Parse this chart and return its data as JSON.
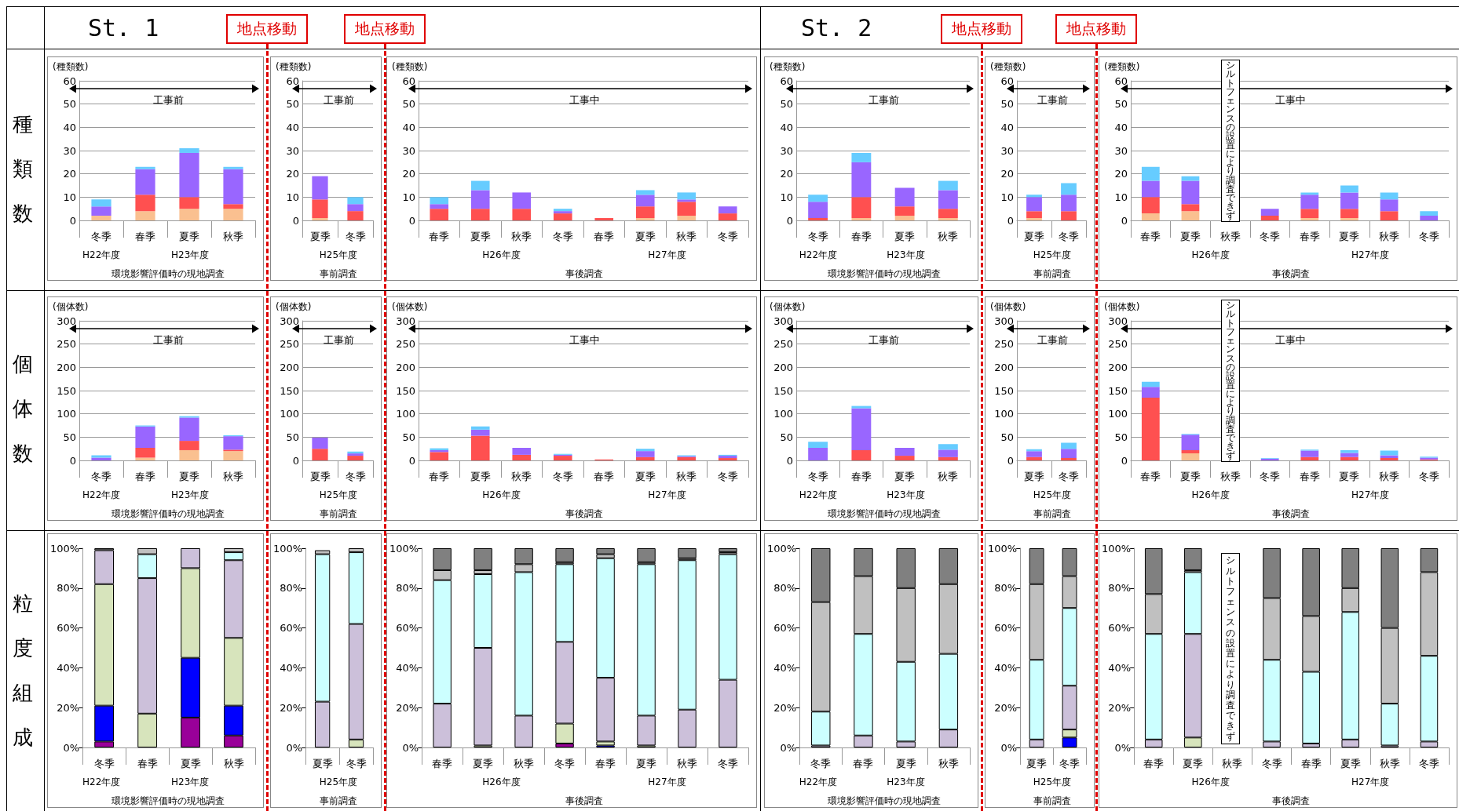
{
  "chart_data": [
    {
      "type": "bar",
      "stacked": true,
      "ylabel": "(種類数)",
      "subtitle": "工事前",
      "xlabel": "環境影響評価時の現地調査",
      "categories": [
        "冬季",
        "春季",
        "夏季",
        "秋季"
      ],
      "ylim": [
        0,
        60
      ],
      "yticks": [
        0,
        10,
        20,
        30,
        40,
        50,
        60
      ],
      "grid": "y",
      "annotations": [
        "H22年度",
        "H23年度"
      ],
      "series": [
        {
          "color": "#fac090",
          "values": [
            2,
            4,
            5,
            5
          ]
        },
        {
          "color": "#ff5050",
          "values": [
            0,
            7,
            5,
            2
          ]
        },
        {
          "color": "#9966ff",
          "values": [
            4,
            11,
            19,
            15
          ]
        },
        {
          "color": "#66ccff",
          "values": [
            3,
            1,
            2,
            1
          ]
        }
      ]
    },
    {
      "type": "bar",
      "stacked": true,
      "ylabel": "(種類数)",
      "subtitle": "工事前",
      "xlabel": "事前調査",
      "categories": [
        "夏季",
        "冬季"
      ],
      "ylim": [
        0,
        60
      ],
      "yticks": [
        0,
        10,
        20,
        30,
        40,
        50,
        60
      ],
      "grid": "y",
      "annotations": [
        "H25年度"
      ],
      "series": [
        {
          "color": "#fac090",
          "values": [
            1,
            0
          ]
        },
        {
          "color": "#ff5050",
          "values": [
            8,
            4
          ]
        },
        {
          "color": "#9966ff",
          "values": [
            10,
            3
          ]
        },
        {
          "color": "#66ccff",
          "values": [
            0,
            3
          ]
        }
      ]
    },
    {
      "type": "bar",
      "stacked": true,
      "ylabel": "(種類数)",
      "subtitle": "工事中",
      "xlabel": "事後調査",
      "categories": [
        "春季",
        "夏季",
        "秋季",
        "冬季",
        "春季",
        "夏季",
        "秋季",
        "冬季"
      ],
      "ylim": [
        0,
        60
      ],
      "yticks": [
        0,
        10,
        20,
        30,
        40,
        50,
        60
      ],
      "grid": "y",
      "annotations": [
        "H26年度",
        "H27年度"
      ],
      "series": [
        {
          "color": "#fac090",
          "values": [
            0,
            0,
            0,
            0,
            0,
            1,
            2,
            0
          ]
        },
        {
          "color": "#ff5050",
          "values": [
            5,
            5,
            5,
            3,
            1,
            5,
            6,
            3
          ]
        },
        {
          "color": "#9966ff",
          "values": [
            2,
            8,
            7,
            1,
            0,
            5,
            1,
            3
          ]
        },
        {
          "color": "#66ccff",
          "values": [
            3,
            4,
            0,
            1,
            0,
            2,
            3,
            0
          ]
        }
      ]
    },
    {
      "type": "bar",
      "stacked": true,
      "ylabel": "(種類数)",
      "subtitle": "工事前",
      "xlabel": "環境影響評価時の現地調査",
      "categories": [
        "冬季",
        "春季",
        "夏季",
        "秋季"
      ],
      "ylim": [
        0,
        60
      ],
      "yticks": [
        0,
        10,
        20,
        30,
        40,
        50,
        60
      ],
      "grid": "y",
      "annotations": [
        "H22年度",
        "H23年度"
      ],
      "series": [
        {
          "color": "#fac090",
          "values": [
            0,
            1,
            2,
            1
          ]
        },
        {
          "color": "#ff5050",
          "values": [
            1,
            9,
            4,
            4
          ]
        },
        {
          "color": "#9966ff",
          "values": [
            7,
            15,
            8,
            8
          ]
        },
        {
          "color": "#66ccff",
          "values": [
            3,
            4,
            0,
            4
          ]
        }
      ]
    },
    {
      "type": "bar",
      "stacked": true,
      "ylabel": "(種類数)",
      "subtitle": "工事前",
      "xlabel": "事前調査",
      "categories": [
        "夏季",
        "冬季"
      ],
      "ylim": [
        0,
        60
      ],
      "yticks": [
        0,
        10,
        20,
        30,
        40,
        50,
        60
      ],
      "grid": "y",
      "annotations": [
        "H25年度"
      ],
      "series": [
        {
          "color": "#fac090",
          "values": [
            1,
            0
          ]
        },
        {
          "color": "#ff5050",
          "values": [
            3,
            4
          ]
        },
        {
          "color": "#9966ff",
          "values": [
            6,
            7
          ]
        },
        {
          "color": "#66ccff",
          "values": [
            1,
            5
          ]
        }
      ]
    },
    {
      "type": "bar",
      "stacked": true,
      "ylabel": "(種類数)",
      "subtitle": "工事中",
      "xlabel": "事後調査",
      "categories": [
        "春季",
        "夏季",
        "秋季",
        "冬季",
        "春季",
        "夏季",
        "秋季",
        "冬季"
      ],
      "ylim": [
        0,
        60
      ],
      "yticks": [
        0,
        10,
        20,
        30,
        40,
        50,
        60
      ],
      "grid": "y",
      "annotations": [
        "H26年度",
        "H27年度",
        "シルトフェンスの設置により調査できず"
      ],
      "series": [
        {
          "color": "#fac090",
          "values": [
            3,
            4,
            null,
            0,
            1,
            1,
            0,
            0
          ]
        },
        {
          "color": "#ff5050",
          "values": [
            7,
            3,
            null,
            2,
            4,
            4,
            4,
            0
          ]
        },
        {
          "color": "#9966ff",
          "values": [
            7,
            10,
            null,
            3,
            6,
            7,
            5,
            2
          ]
        },
        {
          "color": "#66ccff",
          "values": [
            6,
            2,
            null,
            0,
            1,
            3,
            3,
            2
          ]
        }
      ]
    },
    {
      "type": "bar",
      "stacked": true,
      "ylabel": "(個体数)",
      "subtitle": "工事前",
      "xlabel": "環境影響評価時の現地調査",
      "categories": [
        "冬季",
        "春季",
        "夏季",
        "秋季"
      ],
      "ylim": [
        0,
        300
      ],
      "yticks": [
        0,
        50,
        100,
        150,
        200,
        250,
        300
      ],
      "grid": "y",
      "annotations": [
        "H22年度",
        "H23年度"
      ],
      "series": [
        {
          "color": "#fac090",
          "values": [
            0,
            6,
            22,
            20
          ]
        },
        {
          "color": "#ff5050",
          "values": [
            0,
            21,
            20,
            3
          ]
        },
        {
          "color": "#9966ff",
          "values": [
            6,
            46,
            50,
            29
          ]
        },
        {
          "color": "#66ccff",
          "values": [
            5,
            2,
            3,
            2
          ]
        }
      ]
    },
    {
      "type": "bar",
      "stacked": true,
      "ylabel": "(個体数)",
      "subtitle": "工事前",
      "xlabel": "事前調査",
      "categories": [
        "夏季",
        "冬季"
      ],
      "ylim": [
        0,
        300
      ],
      "yticks": [
        0,
        50,
        100,
        150,
        200,
        250,
        300
      ],
      "grid": "y",
      "annotations": [
        "H25年度"
      ],
      "series": [
        {
          "color": "#fac090",
          "values": [
            0,
            0
          ]
        },
        {
          "color": "#ff5050",
          "values": [
            25,
            10
          ]
        },
        {
          "color": "#9966ff",
          "values": [
            24,
            5
          ]
        },
        {
          "color": "#66ccff",
          "values": [
            0,
            4
          ]
        }
      ]
    },
    {
      "type": "bar",
      "stacked": true,
      "ylabel": "(個体数)",
      "subtitle": "工事中",
      "xlabel": "事後調査",
      "categories": [
        "春季",
        "夏季",
        "秋季",
        "冬季",
        "春季",
        "夏季",
        "秋季",
        "冬季"
      ],
      "ylim": [
        0,
        300
      ],
      "yticks": [
        0,
        50,
        100,
        150,
        200,
        250,
        300
      ],
      "grid": "y",
      "annotations": [
        "H26年度",
        "H27年度"
      ],
      "series": [
        {
          "color": "#fac090",
          "values": [
            0,
            0,
            0,
            0,
            0,
            0,
            0,
            0
          ]
        },
        {
          "color": "#ff5050",
          "values": [
            18,
            53,
            12,
            10,
            2,
            7,
            7,
            5
          ]
        },
        {
          "color": "#9966ff",
          "values": [
            4,
            13,
            15,
            2,
            0,
            13,
            2,
            5
          ]
        },
        {
          "color": "#66ccff",
          "values": [
            4,
            7,
            0,
            2,
            0,
            5,
            2,
            2
          ]
        }
      ]
    },
    {
      "type": "bar",
      "stacked": true,
      "ylabel": "(個体数)",
      "subtitle": "工事前",
      "xlabel": "環境影響評価時の現地調査",
      "categories": [
        "冬季",
        "春季",
        "夏季",
        "秋季"
      ],
      "ylim": [
        0,
        300
      ],
      "yticks": [
        0,
        50,
        100,
        150,
        200,
        250,
        300
      ],
      "grid": "y",
      "annotations": [
        "H22年度",
        "H23年度"
      ],
      "series": [
        {
          "color": "#fac090",
          "values": [
            0,
            0,
            0,
            0
          ]
        },
        {
          "color": "#ff5050",
          "values": [
            0,
            22,
            10,
            7
          ]
        },
        {
          "color": "#9966ff",
          "values": [
            27,
            90,
            17,
            16
          ]
        },
        {
          "color": "#66ccff",
          "values": [
            13,
            5,
            0,
            12
          ]
        }
      ]
    },
    {
      "type": "bar",
      "stacked": true,
      "ylabel": "(個体数)",
      "subtitle": "工事前",
      "xlabel": "事前調査",
      "categories": [
        "夏季",
        "冬季"
      ],
      "ylim": [
        0,
        300
      ],
      "yticks": [
        0,
        50,
        100,
        150,
        200,
        250,
        300
      ],
      "grid": "y",
      "annotations": [
        "H25年度"
      ],
      "series": [
        {
          "color": "#fac090",
          "values": [
            0,
            0
          ]
        },
        {
          "color": "#ff5050",
          "values": [
            7,
            5
          ]
        },
        {
          "color": "#9966ff",
          "values": [
            13,
            20
          ]
        },
        {
          "color": "#66ccff",
          "values": [
            4,
            13
          ]
        }
      ]
    },
    {
      "type": "bar",
      "stacked": true,
      "ylabel": "(個体数)",
      "subtitle": "工事中",
      "xlabel": "事後調査",
      "categories": [
        "春季",
        "夏季",
        "秋季",
        "冬季",
        "春季",
        "夏季",
        "秋季",
        "冬季"
      ],
      "ylim": [
        0,
        300
      ],
      "yticks": [
        0,
        50,
        100,
        150,
        200,
        250,
        300
      ],
      "grid": "y",
      "annotations": [
        "H26年度",
        "H27年度",
        "シルトフェンスの設置により調査できず"
      ],
      "series": [
        {
          "color": "#fac090",
          "values": [
            0,
            15,
            null,
            0,
            0,
            0,
            0,
            0
          ]
        },
        {
          "color": "#ff5050",
          "values": [
            135,
            7,
            null,
            null,
            7,
            7,
            5,
            2
          ]
        },
        {
          "color": "#9966ff",
          "values": [
            23,
            33,
            null,
            4,
            14,
            9,
            6,
            4
          ]
        },
        {
          "color": "#66ccff",
          "values": [
            11,
            2,
            null,
            1,
            2,
            6,
            10,
            2
          ]
        }
      ]
    },
    {
      "type": "bar",
      "stacked": true,
      "xlabel": "環境影響評価時の現地調査",
      "categories": [
        "冬季",
        "春季",
        "夏季",
        "秋季"
      ],
      "ylim": [
        0,
        100
      ],
      "yticks": [
        {
          "value": 0,
          "label": "0%"
        },
        {
          "value": 20,
          "label": "20%"
        },
        {
          "value": 40,
          "label": "40%"
        },
        {
          "value": 60,
          "label": "60%"
        },
        {
          "value": 80,
          "label": "80%"
        },
        {
          "value": 100,
          "label": "100%"
        }
      ],
      "annotations": [
        "H22年度",
        "H23年度"
      ],
      "series": [
        {
          "color": "#990099",
          "values": [
            3,
            0,
            15,
            6
          ]
        },
        {
          "color": "#0000ff",
          "values": [
            18,
            0,
            30,
            15
          ]
        },
        {
          "color": "#d7e4bc",
          "values": [
            61,
            17,
            45,
            34
          ]
        },
        {
          "color": "#ccc0da",
          "values": [
            17,
            68,
            10,
            39
          ]
        },
        {
          "color": "#ccffff",
          "values": [
            0,
            12,
            0,
            4
          ]
        },
        {
          "color": "#c0c0c0",
          "values": [
            0,
            3,
            0,
            2
          ]
        },
        {
          "color": "#808080",
          "values": [
            1,
            0,
            0,
            0
          ]
        }
      ]
    },
    {
      "type": "bar",
      "stacked": true,
      "xlabel": "事前調査",
      "categories": [
        "夏季",
        "冬季"
      ],
      "ylim": [
        0,
        100
      ],
      "yticks": [
        {
          "value": 0,
          "label": "0%"
        },
        {
          "value": 20,
          "label": "20%"
        },
        {
          "value": 40,
          "label": "40%"
        },
        {
          "value": 60,
          "label": "60%"
        },
        {
          "value": 80,
          "label": "80%"
        },
        {
          "value": 100,
          "label": "100%"
        }
      ],
      "annotations": [
        "H25年度"
      ],
      "series": [
        {
          "color": "#990099",
          "values": [
            0,
            0
          ]
        },
        {
          "color": "#0000ff",
          "values": [
            0,
            0
          ]
        },
        {
          "color": "#d7e4bc",
          "values": [
            null,
            4
          ]
        },
        {
          "color": "#ccc0da",
          "values": [
            23,
            58
          ]
        },
        {
          "color": "#ccffff",
          "values": [
            74,
            36
          ]
        },
        {
          "color": "#c0c0c0",
          "values": [
            2,
            2
          ]
        },
        {
          "color": "#808080",
          "values": [
            0,
            0
          ]
        }
      ]
    },
    {
      "type": "bar",
      "stacked": true,
      "xlabel": "事後調査",
      "categories": [
        "春季",
        "夏季",
        "秋季",
        "冬季",
        "春季",
        "夏季",
        "秋季",
        "冬季"
      ],
      "ylim": [
        0,
        100
      ],
      "yticks": [
        {
          "value": 0,
          "label": "0%"
        },
        {
          "value": 20,
          "label": "20%"
        },
        {
          "value": 40,
          "label": "40%"
        },
        {
          "value": 60,
          "label": "60%"
        },
        {
          "value": 80,
          "label": "80%"
        },
        {
          "value": 100,
          "label": "100%"
        }
      ],
      "annotations": [
        "H26年度",
        "H27年度"
      ],
      "series": [
        {
          "color": "#990099",
          "values": [
            0,
            0,
            0,
            2,
            0,
            0,
            0,
            0
          ]
        },
        {
          "color": "#0000ff",
          "values": [
            0,
            0,
            0,
            0,
            1,
            0,
            0,
            0
          ]
        },
        {
          "color": "#d7e4bc",
          "values": [
            0,
            1,
            0,
            10,
            2,
            1,
            0,
            0
          ]
        },
        {
          "color": "#ccc0da",
          "values": [
            22,
            49,
            16,
            41,
            32,
            15,
            19,
            34
          ]
        },
        {
          "color": "#ccffff",
          "values": [
            62,
            37,
            72,
            39,
            60,
            76,
            75,
            63
          ]
        },
        {
          "color": "#c0c0c0",
          "values": [
            5,
            2,
            4,
            1,
            2,
            1,
            1,
            1
          ]
        },
        {
          "color": "#808080",
          "values": [
            11,
            11,
            8,
            7,
            3,
            7,
            5,
            2
          ]
        }
      ]
    },
    {
      "type": "bar",
      "stacked": true,
      "xlabel": "環境影響評価時の現地調査",
      "categories": [
        "冬季",
        "春季",
        "夏季",
        "秋季"
      ],
      "ylim": [
        0,
        100
      ],
      "yticks": [
        {
          "value": 0,
          "label": "0%"
        },
        {
          "value": 20,
          "label": "20%"
        },
        {
          "value": 40,
          "label": "40%"
        },
        {
          "value": 60,
          "label": "60%"
        },
        {
          "value": 80,
          "label": "80%"
        },
        {
          "value": 100,
          "label": "100%"
        }
      ],
      "annotations": [
        "H22年度",
        "H23年度"
      ],
      "series": [
        {
          "color": "#990099",
          "values": [
            0,
            0,
            0,
            0
          ]
        },
        {
          "color": "#0000ff",
          "values": [
            0,
            0,
            0,
            0
          ]
        },
        {
          "color": "#d7e4bc",
          "values": [
            0,
            0,
            0,
            0
          ]
        },
        {
          "color": "#ccc0da",
          "values": [
            1,
            6,
            3,
            9
          ]
        },
        {
          "color": "#ccffff",
          "values": [
            17,
            51,
            40,
            38
          ]
        },
        {
          "color": "#c0c0c0",
          "values": [
            55,
            29,
            37,
            35
          ]
        },
        {
          "color": "#808080",
          "values": [
            27,
            14,
            20,
            18
          ]
        }
      ]
    },
    {
      "type": "bar",
      "stacked": true,
      "xlabel": "事前調査",
      "categories": [
        "夏季",
        "冬季"
      ],
      "ylim": [
        0,
        100
      ],
      "yticks": [
        {
          "value": 0,
          "label": "0%"
        },
        {
          "value": 20,
          "label": "20%"
        },
        {
          "value": 40,
          "label": "40%"
        },
        {
          "value": 60,
          "label": "60%"
        },
        {
          "value": 80,
          "label": "80%"
        },
        {
          "value": 100,
          "label": "100%"
        }
      ],
      "annotations": [
        "H25年度"
      ],
      "series": [
        {
          "color": "#990099",
          "values": [
            0,
            0
          ]
        },
        {
          "color": "#0000ff",
          "values": [
            0,
            5
          ]
        },
        {
          "color": "#d7e4bc",
          "values": [
            0,
            4
          ]
        },
        {
          "color": "#ccc0da",
          "values": [
            4,
            22
          ]
        },
        {
          "color": "#ccffff",
          "values": [
            40,
            39
          ]
        },
        {
          "color": "#c0c0c0",
          "values": [
            38,
            16
          ]
        },
        {
          "color": "#808080",
          "values": [
            18,
            14
          ]
        }
      ]
    },
    {
      "type": "bar",
      "stacked": true,
      "xlabel": "事後調査",
      "categories": [
        "春季",
        "夏季",
        "秋季",
        "冬季",
        "春季",
        "夏季",
        "秋季",
        "冬季"
      ],
      "ylim": [
        0,
        100
      ],
      "yticks": [
        {
          "value": 0,
          "label": "0%"
        },
        {
          "value": 20,
          "label": "20%"
        },
        {
          "value": 40,
          "label": "40%"
        },
        {
          "value": 60,
          "label": "60%"
        },
        {
          "value": 80,
          "label": "80%"
        },
        {
          "value": 100,
          "label": "100%"
        }
      ],
      "annotations": [
        "H26年度",
        "H27年度",
        "シルトフェンスの設置により調査できず"
      ],
      "series": [
        {
          "color": "#990099",
          "values": [
            0,
            0,
            null,
            0,
            0,
            0,
            0,
            0
          ]
        },
        {
          "color": "#0000ff",
          "values": [
            0,
            0,
            null,
            0,
            0,
            0,
            0,
            0
          ]
        },
        {
          "color": "#d7e4bc",
          "values": [
            0,
            5,
            null,
            0,
            0,
            0,
            0,
            0
          ]
        },
        {
          "color": "#ccc0da",
          "values": [
            4,
            52,
            null,
            3,
            2,
            4,
            1,
            3
          ]
        },
        {
          "color": "#ccffff",
          "values": [
            53,
            31,
            null,
            41,
            36,
            64,
            21,
            43
          ]
        },
        {
          "color": "#c0c0c0",
          "values": [
            20,
            1,
            null,
            31,
            28,
            12,
            38,
            42
          ]
        },
        {
          "color": "#808080",
          "values": [
            23,
            11,
            null,
            25,
            34,
            20,
            40,
            12
          ]
        }
      ]
    },
    {
      "type": "other",
      "annotations": [
        "St. 1",
        "St. 2",
        "種類数",
        "個体数",
        "粒度組成",
        "地点移動",
        "地点移動",
        "地点移動",
        "地点移動"
      ]
    }
  ]
}
